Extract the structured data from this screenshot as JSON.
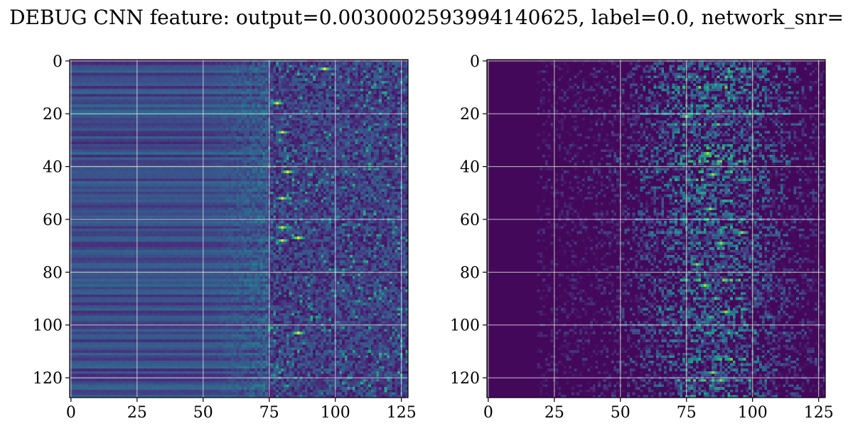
{
  "title": "DEBUG CNN feature: output=0.0030002593994140625, label=0.0, network_snr=",
  "chart_data": [
    {
      "type": "heatmap",
      "title": "",
      "xlabel": "",
      "ylabel": "",
      "colormap": "viridis",
      "grid": true,
      "shape": [
        128,
        128
      ],
      "xlim": [
        -0.5,
        127.5
      ],
      "ylim": [
        127.5,
        -0.5
      ],
      "xticks": [
        0,
        25,
        50,
        75,
        100,
        125
      ],
      "yticks": [
        0,
        20,
        40,
        60,
        80,
        100,
        120
      ],
      "description_values": {
        "cols_0_50": "smooth horizontal bands, low-mid values (0.15-0.35)",
        "cols_50_75": "noisy, mid values",
        "cols_75_127": "noisy, low with sparse bright hotspots"
      },
      "hotspots": [
        [
          96,
          3
        ],
        [
          80,
          27
        ],
        [
          78,
          16
        ],
        [
          82,
          42
        ],
        [
          80,
          52
        ],
        [
          80,
          63
        ],
        [
          86,
          67
        ],
        [
          80,
          68
        ],
        [
          86,
          103
        ]
      ]
    },
    {
      "type": "heatmap",
      "title": "",
      "xlabel": "",
      "ylabel": "",
      "colormap": "viridis",
      "grid": true,
      "shape": [
        128,
        128
      ],
      "xlim": [
        -0.5,
        127.5
      ],
      "ylim": [
        127.5,
        -0.5
      ],
      "xticks": [
        0,
        25,
        50,
        75,
        100,
        125
      ],
      "yticks": [
        0,
        20,
        40,
        60,
        80,
        100,
        120
      ],
      "description_values": {
        "cols_0_20": "near zero (dark purple)",
        "cols_20_127": "sparse horizontal streaks, brightest near columns 75-95"
      },
      "hotspots": [
        [
          75,
          21
        ],
        [
          83,
          35
        ],
        [
          85,
          43
        ],
        [
          84,
          56
        ],
        [
          96,
          65
        ],
        [
          88,
          69
        ],
        [
          79,
          77
        ],
        [
          82,
          85
        ],
        [
          90,
          95
        ],
        [
          85,
          118
        ],
        [
          88,
          121
        ]
      ]
    }
  ]
}
